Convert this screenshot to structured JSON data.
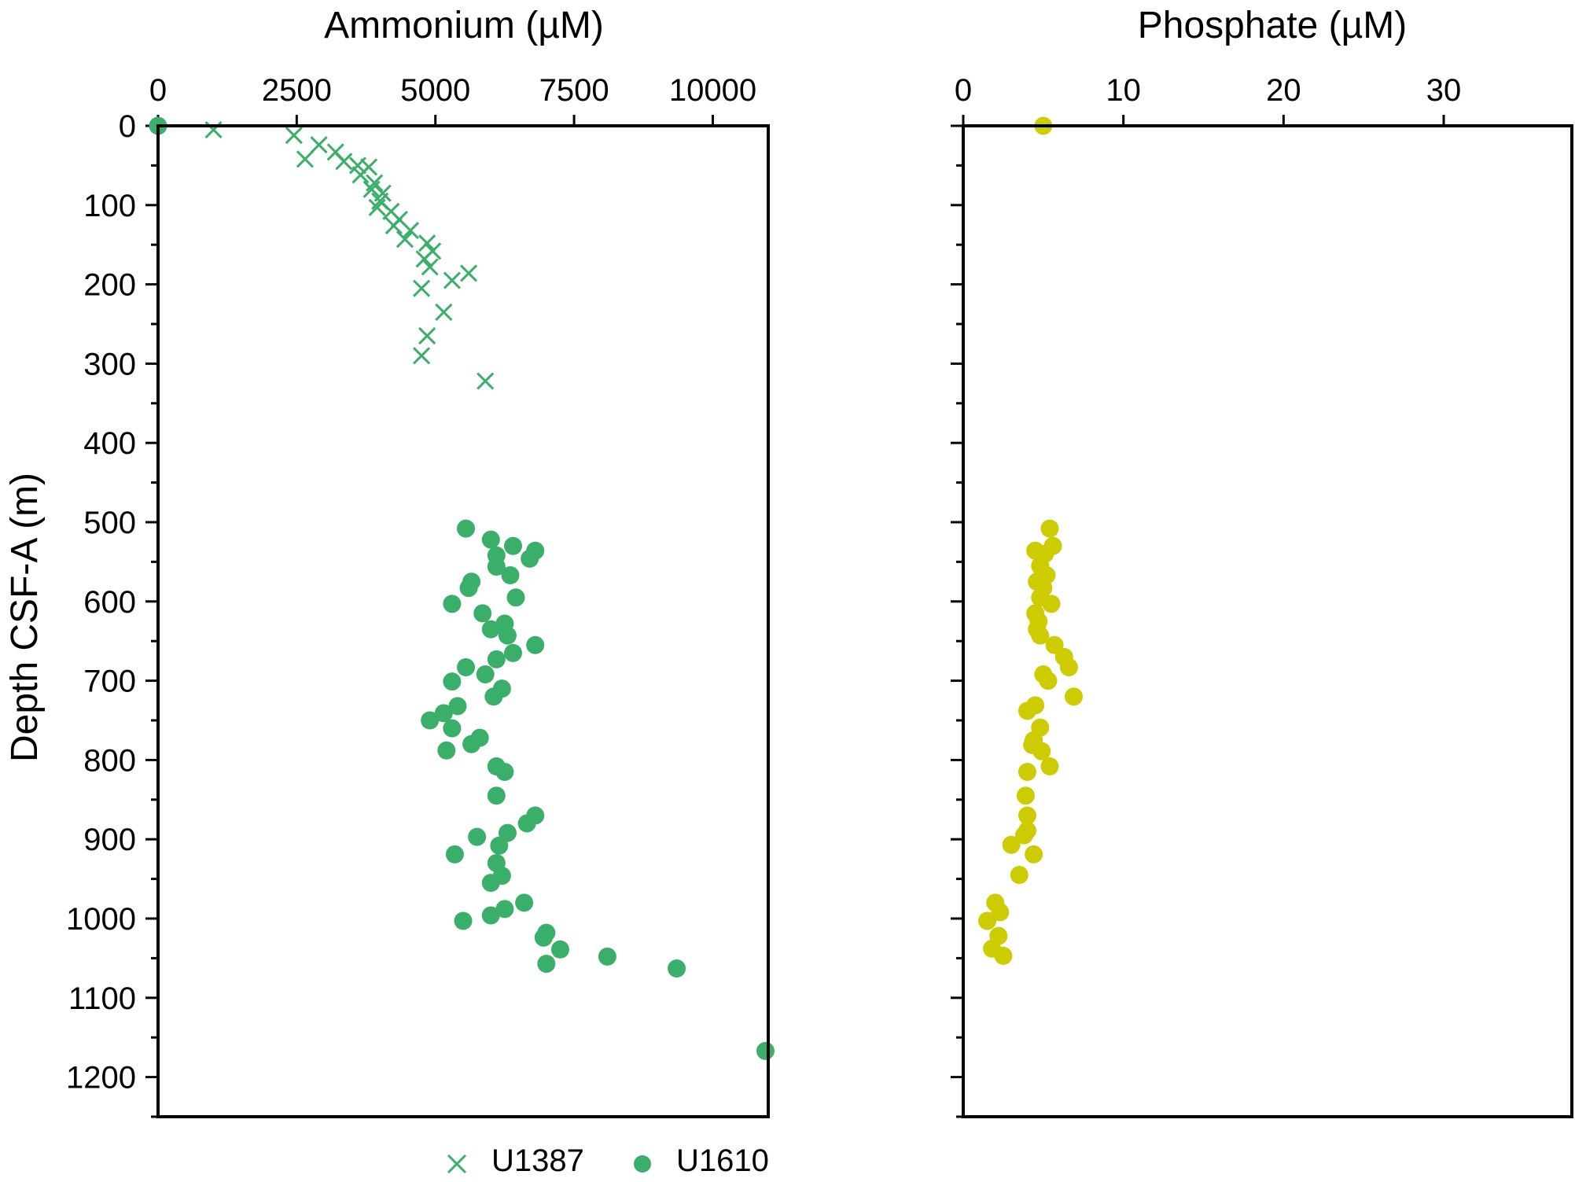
{
  "chart_data": [
    {
      "type": "scatter",
      "xlabel": "Ammonium (µM)",
      "ylabel": "Depth CSF-A (m)",
      "xlim": [
        0,
        11000
      ],
      "ylim": [
        0,
        1250
      ],
      "y_inverted": true,
      "x_axis_position": "top",
      "x_ticks": [
        0,
        2500,
        5000,
        7500,
        10000
      ],
      "y_ticks": [
        0,
        100,
        200,
        300,
        400,
        500,
        600,
        700,
        800,
        900,
        1000,
        1100,
        1200
      ],
      "legend": {
        "placement": "bottom",
        "entries": [
          "U1387",
          "U1610"
        ]
      },
      "series": [
        {
          "name": "U1387",
          "marker": "x",
          "color": "#3aaf6a",
          "points": [
            [
              1000,
              5
            ],
            [
              2450,
              12
            ],
            [
              2900,
              24
            ],
            [
              2650,
              42
            ],
            [
              3200,
              33
            ],
            [
              3350,
              45
            ],
            [
              3600,
              50
            ],
            [
              3800,
              52
            ],
            [
              3650,
              62
            ],
            [
              3900,
              72
            ],
            [
              3850,
              80
            ],
            [
              4050,
              85
            ],
            [
              4000,
              95
            ],
            [
              3950,
              103
            ],
            [
              4200,
              108
            ],
            [
              4350,
              118
            ],
            [
              4250,
              126
            ],
            [
              4550,
              132
            ],
            [
              4450,
              143
            ],
            [
              4850,
              148
            ],
            [
              4950,
              158
            ],
            [
              4800,
              168
            ],
            [
              4900,
              178
            ],
            [
              5600,
              186
            ],
            [
              5300,
              195
            ],
            [
              4750,
              205
            ],
            [
              5150,
              235
            ],
            [
              4850,
              265
            ],
            [
              4750,
              290
            ],
            [
              5900,
              322
            ]
          ]
        },
        {
          "name": "U1610",
          "marker": "circle",
          "color": "#3aaf6a",
          "points": [
            [
              0,
              0
            ],
            [
              5550,
              508
            ],
            [
              6000,
              522
            ],
            [
              6400,
              530
            ],
            [
              6800,
              536
            ],
            [
              6100,
              542
            ],
            [
              6700,
              546
            ],
            [
              6100,
              556
            ],
            [
              6350,
              567
            ],
            [
              5650,
              575
            ],
            [
              5600,
              583
            ],
            [
              6450,
              595
            ],
            [
              5300,
              603
            ],
            [
              5850,
              615
            ],
            [
              6250,
              628
            ],
            [
              6000,
              635
            ],
            [
              6300,
              643
            ],
            [
              6800,
              655
            ],
            [
              6400,
              665
            ],
            [
              6100,
              673
            ],
            [
              5550,
              683
            ],
            [
              5900,
              692
            ],
            [
              5300,
              701
            ],
            [
              6200,
              710
            ],
            [
              6050,
              720
            ],
            [
              5400,
              732
            ],
            [
              5150,
              741
            ],
            [
              4900,
              750
            ],
            [
              5300,
              760
            ],
            [
              5800,
              772
            ],
            [
              5650,
              780
            ],
            [
              5200,
              788
            ],
            [
              6100,
              808
            ],
            [
              6250,
              815
            ],
            [
              6100,
              845
            ],
            [
              6800,
              870
            ],
            [
              6650,
              880
            ],
            [
              6300,
              892
            ],
            [
              5750,
              897
            ],
            [
              6150,
              908
            ],
            [
              5350,
              919
            ],
            [
              6100,
              930
            ],
            [
              6200,
              946
            ],
            [
              6000,
              955
            ],
            [
              6600,
              980
            ],
            [
              6250,
              988
            ],
            [
              6000,
              996
            ],
            [
              5500,
              1003
            ],
            [
              7000,
              1018
            ],
            [
              6950,
              1024
            ],
            [
              7250,
              1039
            ],
            [
              8100,
              1048
            ],
            [
              7000,
              1057
            ],
            [
              9350,
              1063
            ],
            [
              10950,
              1167
            ]
          ]
        }
      ]
    },
    {
      "type": "scatter",
      "xlabel": "Phosphate (µM)",
      "ylabel": "",
      "xlim": [
        0,
        38
      ],
      "ylim": [
        0,
        1250
      ],
      "y_inverted": true,
      "x_axis_position": "top",
      "x_ticks": [
        0,
        10,
        20,
        30
      ],
      "series": [
        {
          "name": "U1610",
          "marker": "circle",
          "color": "#cccc00",
          "points": [
            [
              5.0,
              0
            ],
            [
              5.4,
              508
            ],
            [
              5.6,
              530
            ],
            [
              4.5,
              536
            ],
            [
              5.1,
              540
            ],
            [
              4.8,
              555
            ],
            [
              5.2,
              567
            ],
            [
              4.6,
              575
            ],
            [
              5.0,
              583
            ],
            [
              4.8,
              595
            ],
            [
              5.5,
              603
            ],
            [
              4.5,
              615
            ],
            [
              4.7,
              625
            ],
            [
              4.6,
              635
            ],
            [
              4.8,
              643
            ],
            [
              5.7,
              655
            ],
            [
              6.3,
              670
            ],
            [
              6.6,
              683
            ],
            [
              5.0,
              692
            ],
            [
              5.3,
              700
            ],
            [
              6.9,
              720
            ],
            [
              4.5,
              731
            ],
            [
              4.0,
              738
            ],
            [
              4.8,
              759
            ],
            [
              4.4,
              775
            ],
            [
              4.3,
              781
            ],
            [
              4.9,
              789
            ],
            [
              5.4,
              808
            ],
            [
              4.0,
              815
            ],
            [
              3.9,
              845
            ],
            [
              4.0,
              870
            ],
            [
              4.0,
              889
            ],
            [
              3.8,
              895
            ],
            [
              3.0,
              907
            ],
            [
              4.4,
              919
            ],
            [
              3.5,
              945
            ],
            [
              2.0,
              980
            ],
            [
              2.3,
              992
            ],
            [
              1.5,
              1003
            ],
            [
              2.2,
              1022
            ],
            [
              1.8,
              1038
            ],
            [
              2.5,
              1047
            ]
          ]
        }
      ]
    }
  ]
}
